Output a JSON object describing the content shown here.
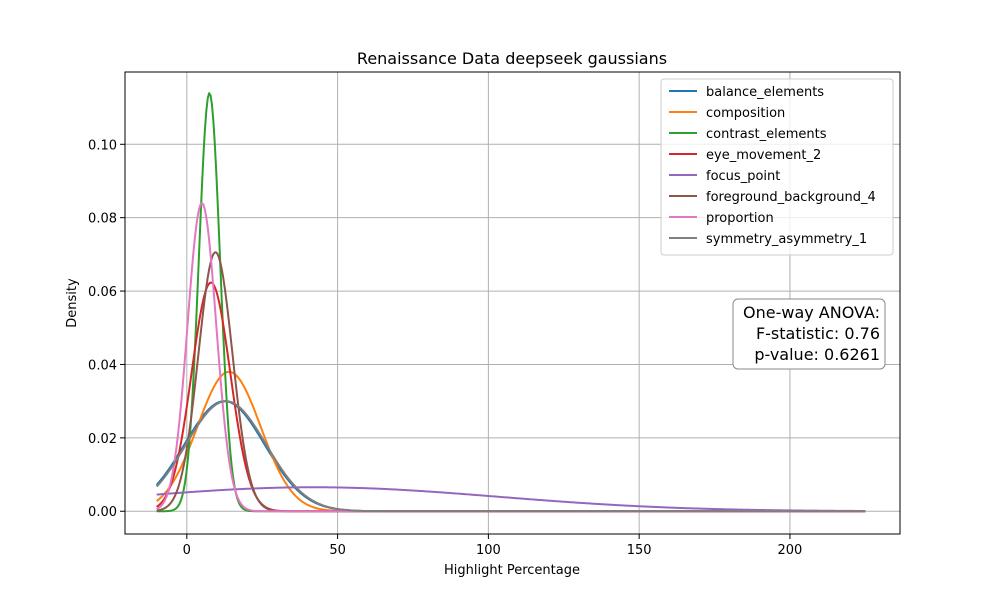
{
  "chart_data": {
    "type": "line",
    "title": "Renaissance Data deepseek gaussians",
    "xlabel": "Highlight Percentage",
    "ylabel": "Density",
    "xlim": [
      -20.5,
      236.5
    ],
    "ylim": [
      -0.0062,
      0.1197
    ],
    "x_range": [
      -10,
      225
    ],
    "xticks": [
      0,
      50,
      100,
      150,
      200
    ],
    "yticks": [
      0.0,
      0.02,
      0.04,
      0.06,
      0.08,
      0.1
    ],
    "ytick_labels": [
      "0.00",
      "0.02",
      "0.04",
      "0.06",
      "0.08",
      "0.10"
    ],
    "grid": true,
    "legend_position": "top-right",
    "series": [
      {
        "name": "balance_elements",
        "color": "#1f77b4",
        "mean": 12.5,
        "sd": 13.3
      },
      {
        "name": "composition",
        "color": "#ff7f0e",
        "mean": 14,
        "sd": 10.5
      },
      {
        "name": "contrast_elements",
        "color": "#2ca02c",
        "mean": 7.5,
        "sd": 3.5
      },
      {
        "name": "eye_movement_2",
        "color": "#d62728",
        "mean": 8,
        "sd": 6.4
      },
      {
        "name": "focus_point",
        "color": "#9467bd",
        "mean": 42,
        "sd": 61
      },
      {
        "name": "foreground_background_4",
        "color": "#8c564b",
        "mean": 9.5,
        "sd": 5.65
      },
      {
        "name": "proportion",
        "color": "#e377c2",
        "mean": 5,
        "sd": 4.75
      },
      {
        "name": "symmetry_asymmetry_1",
        "color": "#7f7f7f",
        "mean": 13,
        "sd": 13.3
      }
    ],
    "annotation": {
      "line1": "One-way ANOVA:",
      "line2": "F-statistic: 0.76",
      "line3": "p-value: 0.6261"
    }
  }
}
